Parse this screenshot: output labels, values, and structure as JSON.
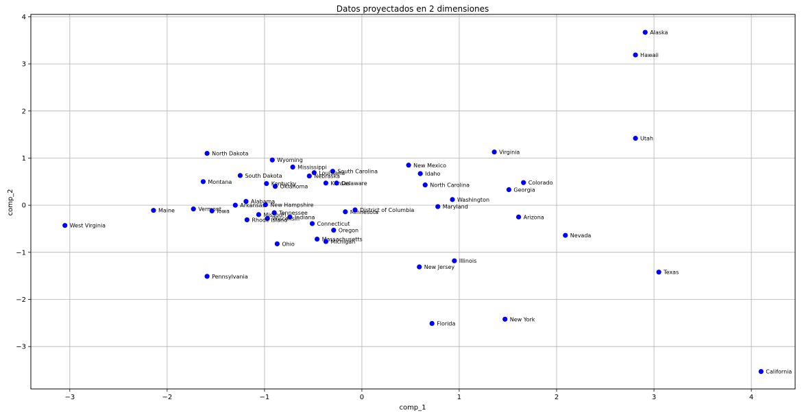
{
  "chart_data": {
    "type": "scatter",
    "title": "Datos proyectados en 2 dimensiones",
    "xlabel": "comp_1",
    "ylabel": "comp_2",
    "xlim": [
      -3.4,
      4.45
    ],
    "ylim": [
      -3.9,
      4.05
    ],
    "xticks": [
      -3,
      -2,
      -1,
      0,
      1,
      2,
      3,
      4
    ],
    "yticks": [
      -3,
      -2,
      -1,
      0,
      1,
      2,
      3,
      4
    ],
    "grid": true,
    "marker_color": "#0000ff",
    "points": [
      {
        "label": "Alaska",
        "x": 2.91,
        "y": 3.67
      },
      {
        "label": "Hawaii",
        "x": 2.81,
        "y": 3.19
      },
      {
        "label": "Utah",
        "x": 2.81,
        "y": 1.42
      },
      {
        "label": "Virginia",
        "x": 1.36,
        "y": 1.13
      },
      {
        "label": "North Dakota",
        "x": -1.59,
        "y": 1.1
      },
      {
        "label": "Wyoming",
        "x": -0.92,
        "y": 0.96
      },
      {
        "label": "Mississippi",
        "x": -0.71,
        "y": 0.81
      },
      {
        "label": "New Mexico",
        "x": 0.48,
        "y": 0.85
      },
      {
        "label": "South Carolina",
        "x": -0.3,
        "y": 0.72
      },
      {
        "label": "Louisiana",
        "x": -0.49,
        "y": 0.69
      },
      {
        "label": "Idaho",
        "x": 0.6,
        "y": 0.67
      },
      {
        "label": "Nebraska",
        "x": -0.54,
        "y": 0.62
      },
      {
        "label": "South Dakota",
        "x": -1.25,
        "y": 0.63
      },
      {
        "label": "Montana",
        "x": -1.63,
        "y": 0.5
      },
      {
        "label": "Kentucky",
        "x": -0.98,
        "y": 0.46
      },
      {
        "label": "Kansas",
        "x": -0.37,
        "y": 0.47
      },
      {
        "label": "Delaware",
        "x": -0.26,
        "y": 0.47
      },
      {
        "label": "Oklahoma",
        "x": -0.89,
        "y": 0.4
      },
      {
        "label": "North Carolina",
        "x": 0.65,
        "y": 0.43
      },
      {
        "label": "Colorado",
        "x": 1.66,
        "y": 0.48
      },
      {
        "label": "Georgia",
        "x": 1.51,
        "y": 0.33
      },
      {
        "label": "Washington",
        "x": 0.93,
        "y": 0.12
      },
      {
        "label": "Alabama",
        "x": -1.19,
        "y": 0.08
      },
      {
        "label": "Arkansas",
        "x": -1.3,
        "y": 0.0
      },
      {
        "label": "New Hampshire",
        "x": -0.99,
        "y": 0.01
      },
      {
        "label": "Maryland",
        "x": 0.78,
        "y": -0.03
      },
      {
        "label": "Maine",
        "x": -2.14,
        "y": -0.11
      },
      {
        "label": "Vermont",
        "x": -1.73,
        "y": -0.08
      },
      {
        "label": "Iowa",
        "x": -1.54,
        "y": -0.12
      },
      {
        "label": "Minnesota",
        "x": -0.17,
        "y": -0.14
      },
      {
        "label": "District of Columbia",
        "x": -0.07,
        "y": -0.1
      },
      {
        "label": "Tennessee",
        "x": -0.9,
        "y": -0.16
      },
      {
        "label": "Missouri",
        "x": -1.06,
        "y": -0.2
      },
      {
        "label": "Indiana",
        "x": -0.74,
        "y": -0.25
      },
      {
        "label": "Wisconsin",
        "x": -0.97,
        "y": -0.28
      },
      {
        "label": "Rhode Island",
        "x": -1.18,
        "y": -0.31
      },
      {
        "label": "Arizona",
        "x": 1.61,
        "y": -0.25
      },
      {
        "label": "West Virginia",
        "x": -3.05,
        "y": -0.43
      },
      {
        "label": "Connecticut",
        "x": -0.51,
        "y": -0.39
      },
      {
        "label": "Oregon",
        "x": -0.29,
        "y": -0.53
      },
      {
        "label": "Nevada",
        "x": 2.09,
        "y": -0.64
      },
      {
        "label": "Massachusetts",
        "x": -0.46,
        "y": -0.72
      },
      {
        "label": "Michigan",
        "x": -0.37,
        "y": -0.77
      },
      {
        "label": "Ohio",
        "x": -0.87,
        "y": -0.82
      },
      {
        "label": "Illinois",
        "x": 0.95,
        "y": -1.18
      },
      {
        "label": "New Jersey",
        "x": 0.59,
        "y": -1.31
      },
      {
        "label": "Texas",
        "x": 3.05,
        "y": -1.42
      },
      {
        "label": "Pennsylvania",
        "x": -1.59,
        "y": -1.51
      },
      {
        "label": "New York",
        "x": 1.47,
        "y": -2.42
      },
      {
        "label": "Florida",
        "x": 0.72,
        "y": -2.51
      },
      {
        "label": "California",
        "x": 4.1,
        "y": -3.53
      }
    ]
  }
}
